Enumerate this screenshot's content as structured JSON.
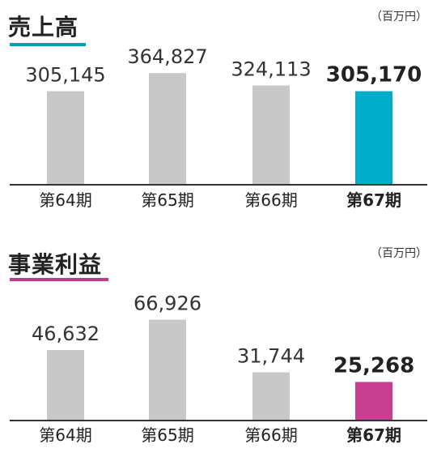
{
  "charts": {
    "sales": {
      "title": "売上高",
      "unit": "（百万円）",
      "accent": "#00aec9",
      "underline_color": "#00a0b8"
    },
    "profit": {
      "title": "事業利益",
      "unit": "（百万円）",
      "accent": "#c83e91",
      "underline_color": "#c23a8b"
    }
  },
  "chart_data": [
    {
      "type": "bar",
      "title": "売上高",
      "unit": "（百万円）",
      "categories": [
        "第64期",
        "第65期",
        "第66期",
        "第67期"
      ],
      "values": [
        305145,
        364827,
        324113,
        305170
      ],
      "value_labels": [
        "305,145",
        "364,827",
        "324,113",
        "305,170"
      ],
      "highlight_index": 3,
      "bar_color": "#c8c8c8",
      "highlight_color": "#00aec9",
      "ylim": [
        0,
        440000
      ],
      "grid": false
    },
    {
      "type": "bar",
      "title": "事業利益",
      "unit": "（百万円）",
      "categories": [
        "第64期",
        "第65期",
        "第66期",
        "第67期"
      ],
      "values": [
        46632,
        66926,
        31744,
        25268
      ],
      "value_labels": [
        "46,632",
        "66,926",
        "31,744",
        "25,268"
      ],
      "highlight_index": 3,
      "bar_color": "#c8c8c8",
      "highlight_color": "#c83e91",
      "ylim": [
        0,
        90000
      ],
      "grid": false
    }
  ]
}
